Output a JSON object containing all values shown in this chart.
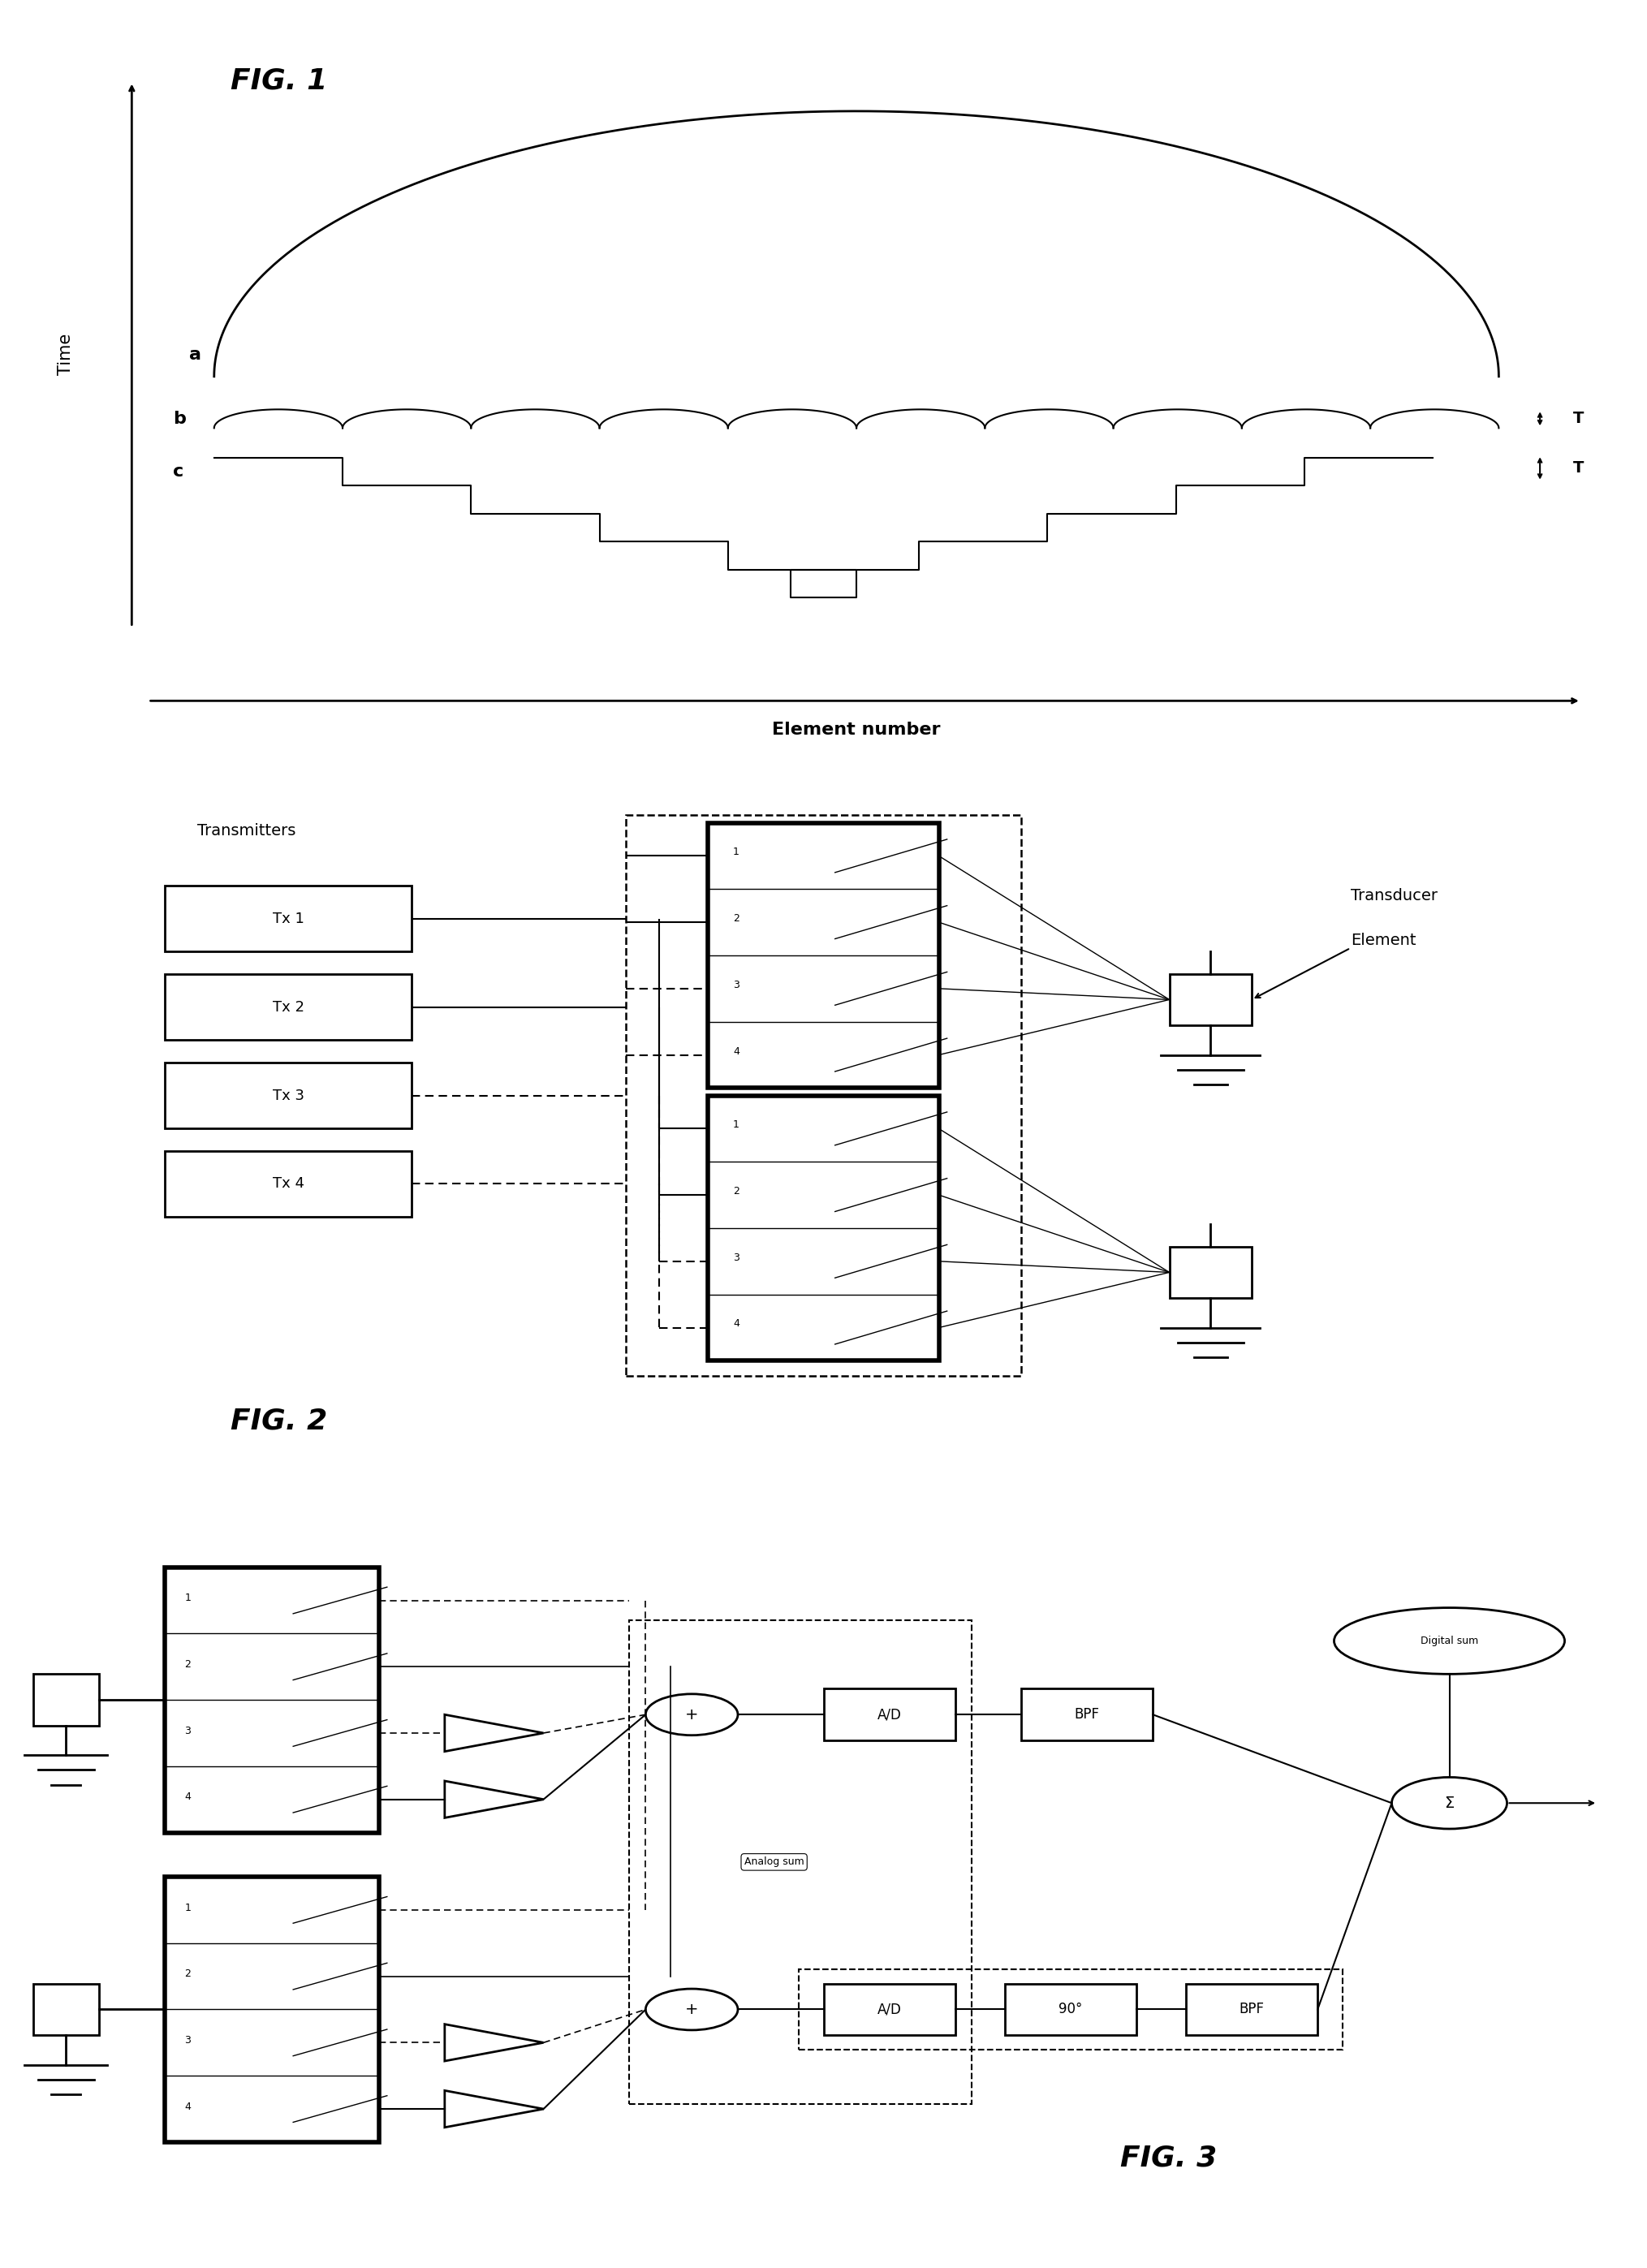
{
  "fig_width": 20.29,
  "fig_height": 27.94,
  "bg_color": "#ffffff",
  "fig1": {
    "title": "FIG. 1",
    "label_a": "a",
    "label_b": "b",
    "label_c": "c",
    "label_time": "Time",
    "label_element": "Element number",
    "label_T": "T"
  },
  "fig2": {
    "title": "FIG. 2",
    "label_transmitters": "Transmitters",
    "label_transducer": "Transducer\nElement",
    "tx_labels": [
      "Tx 1",
      "Tx 2",
      "Tx 3",
      "Tx 4"
    ]
  },
  "fig3": {
    "title": "FIG. 3",
    "label_analog_sum": "Analog sum",
    "label_digital_sum": "Digital sum"
  }
}
